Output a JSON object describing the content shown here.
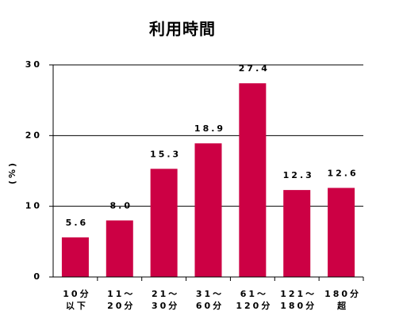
{
  "chart_data": {
    "type": "bar",
    "title": "利用時間",
    "y_label": "(%)",
    "categories": [
      "10分\n以下",
      "11～\n20分",
      "21～\n30分",
      "31～\n60分",
      "61～\n120分",
      "121～\n180分",
      "180分\n超"
    ],
    "values": [
      5.6,
      8.0,
      15.3,
      18.9,
      27.4,
      12.3,
      12.6
    ],
    "value_labels": [
      "5.6",
      "8.0",
      "15.3",
      "18.9",
      "27.4",
      "12.3",
      "12.6"
    ],
    "color": "#cc0044",
    "ylim": [
      0,
      30
    ],
    "yticks": [
      0,
      10,
      20,
      30
    ],
    "grid": true
  }
}
